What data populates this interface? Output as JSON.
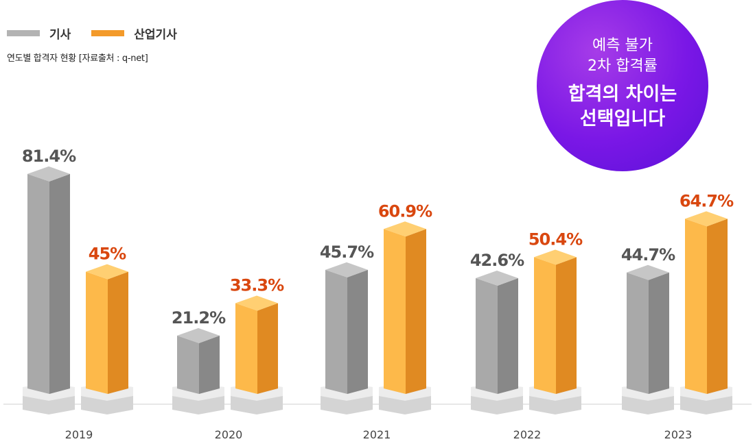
{
  "legend": {
    "series1_label": "기사",
    "series2_label": "산업기사"
  },
  "subtitle": "연도별 합격자 현황 [자료출처 : q-net]",
  "badge": {
    "line1": "예측 불가",
    "line2": "2차 합격률",
    "line3": "합격의 차이는",
    "line4": "선택입니다"
  },
  "colors": {
    "series1": "#a6a6a6",
    "series2": "#f5a22c",
    "series1_label": "#555555",
    "series2_label": "#d9470f",
    "badge": "#7a17e6"
  },
  "chart_data": {
    "type": "bar",
    "categories": [
      "2019",
      "2020",
      "2021",
      "2022",
      "2023"
    ],
    "series": [
      {
        "name": "기사",
        "values": [
          81.4,
          21.2,
          45.7,
          42.6,
          44.7
        ],
        "labels": [
          "81.4%",
          "21.2%",
          "45.7%",
          "42.6%",
          "44.7%"
        ]
      },
      {
        "name": "산업기사",
        "values": [
          45,
          33.3,
          60.9,
          50.4,
          64.7
        ],
        "labels": [
          "45%",
          "33.3%",
          "60.9%",
          "50.4%",
          "64.7%"
        ]
      }
    ],
    "ylim": [
      0,
      100
    ],
    "grid": false,
    "legend_position": "top-left"
  }
}
